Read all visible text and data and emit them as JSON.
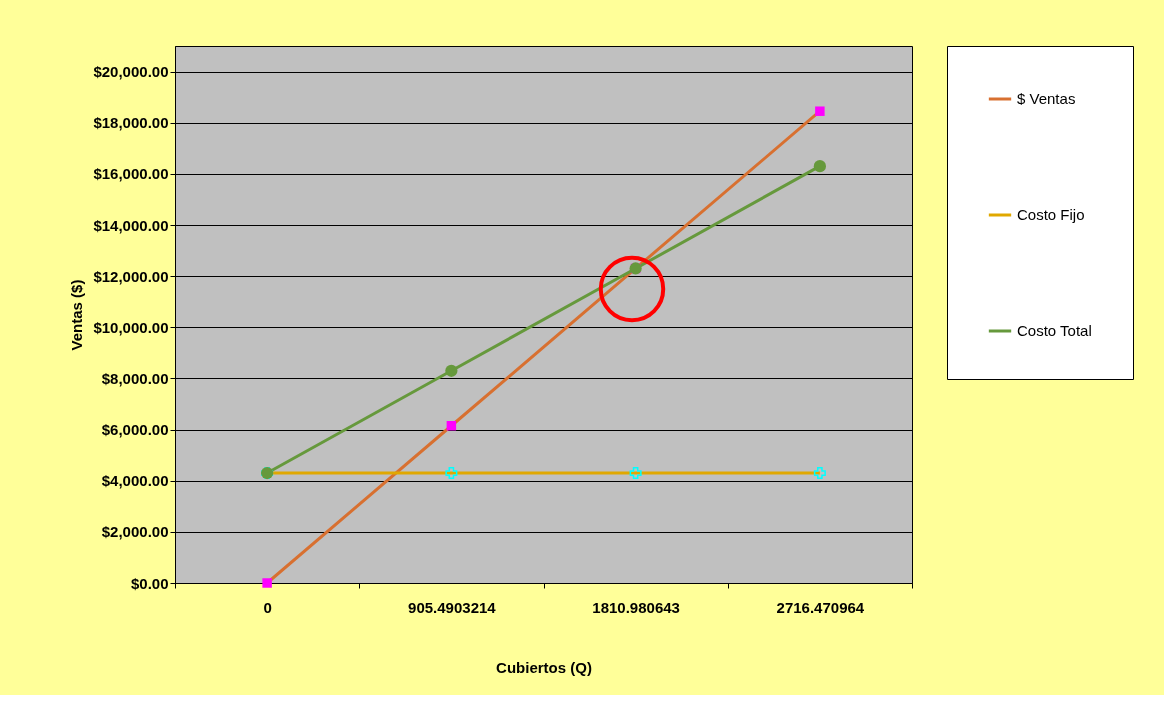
{
  "chart_data": {
    "type": "line",
    "xlabel": "Cubiertos (Q)",
    "ylabel": "Ventas ($)",
    "categories": [
      "0",
      "905.4903214",
      "1810.980643",
      "2716.470964"
    ],
    "ylim": [
      0,
      21000
    ],
    "yticks": [
      {
        "value": 0,
        "label": "$0.00"
      },
      {
        "value": 2000,
        "label": "$2,000.00"
      },
      {
        "value": 4000,
        "label": "$4,000.00"
      },
      {
        "value": 6000,
        "label": "$6,000.00"
      },
      {
        "value": 8000,
        "label": "$8,000.00"
      },
      {
        "value": 10000,
        "label": "$10,000.00"
      },
      {
        "value": 12000,
        "label": "$12,000.00"
      },
      {
        "value": 14000,
        "label": "$14,000.00"
      },
      {
        "value": 16000,
        "label": "$16,000.00"
      },
      {
        "value": 18000,
        "label": "$18,000.00"
      },
      {
        "value": 20000,
        "label": "$20,000.00"
      }
    ],
    "series": [
      {
        "name": "$ Ventas",
        "color": "#d87030",
        "marker": "square",
        "values": [
          0,
          6150,
          12300,
          18450
        ]
      },
      {
        "name": "Costo Fijo",
        "color": "#e0a800",
        "marker": "cross",
        "values": [
          4300,
          4300,
          4300,
          4300
        ]
      },
      {
        "name": "Costo Total",
        "color": "#66993c",
        "marker": "circle",
        "values": [
          4300,
          8300,
          12300,
          16300
        ]
      }
    ],
    "grid": "y",
    "legend": "right",
    "line_style": "solid"
  }
}
